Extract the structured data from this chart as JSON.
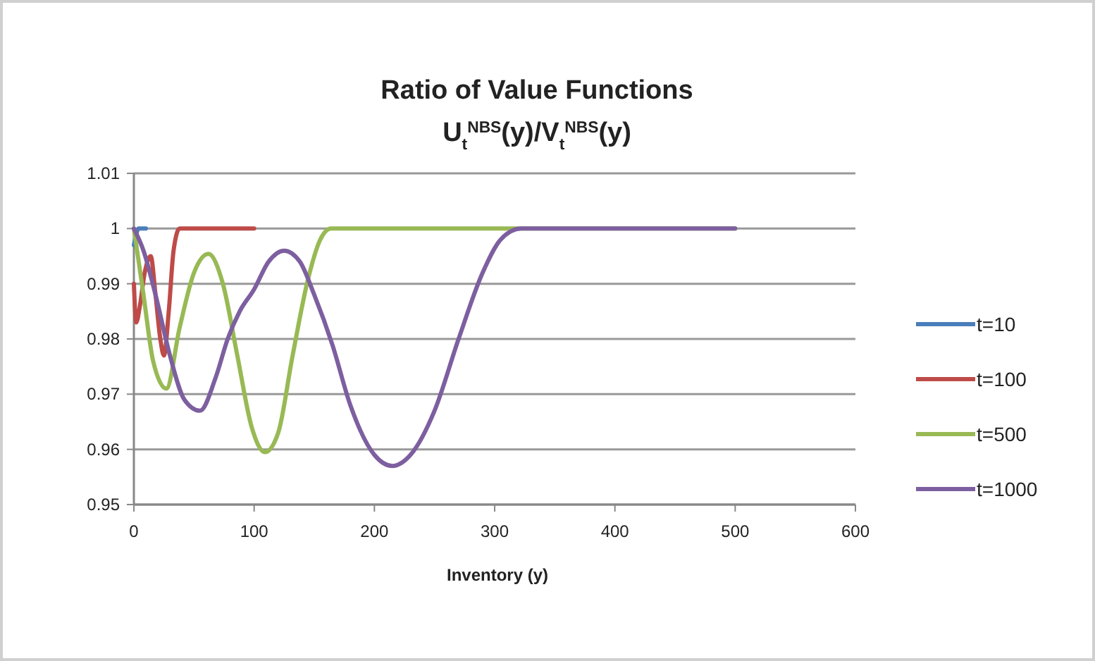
{
  "chart_data": {
    "type": "line",
    "title": "Ratio of Value Functions",
    "subtitle": "U$_{t}$$^{NBS}$(y)/V$_{t}$$^{NBS}$(y)",
    "xlabel": "Inventory (y)",
    "xlim": [
      0,
      600
    ],
    "xticks": [
      0,
      100,
      200,
      300,
      400,
      500,
      600
    ],
    "ylim": [
      0.95,
      1.01
    ],
    "yticks": [
      0.95,
      0.96,
      0.97,
      0.98,
      0.99,
      1,
      1.01
    ],
    "grid": "y",
    "legend": "right",
    "line_style": "solid",
    "marker": "none",
    "series": [
      {
        "name": "t=10",
        "color": "#4a7ebb",
        "x": [
          0,
          2,
          4,
          6,
          10
        ],
        "values": [
          0.997,
          0.999,
          1,
          1,
          1
        ]
      },
      {
        "name": "t=100",
        "color": "#be4b48",
        "x": [
          0,
          2,
          5,
          9,
          14,
          18,
          22,
          25,
          29,
          33,
          38,
          45,
          100
        ],
        "values": [
          0.99,
          0.983,
          0.986,
          0.992,
          0.995,
          0.988,
          0.98,
          0.977,
          0.985,
          0.996,
          1,
          1,
          1
        ]
      },
      {
        "name": "t=500",
        "color": "#98b954",
        "x": [
          0,
          8,
          16,
          27,
          38,
          50,
          62,
          74,
          86,
          98,
          109,
          120,
          132,
          145,
          155,
          164,
          180,
          500
        ],
        "values": [
          1,
          0.988,
          0.976,
          0.971,
          0.982,
          0.992,
          0.9954,
          0.99,
          0.977,
          0.964,
          0.9595,
          0.963,
          0.977,
          0.991,
          0.998,
          1,
          1,
          1
        ]
      },
      {
        "name": "t=1000",
        "color": "#7d5fa0",
        "x": [
          0,
          8,
          18,
          30,
          42,
          55,
          68,
          78,
          88,
          100,
          112,
          125,
          138,
          150,
          165,
          180,
          200,
          215,
          230,
          250,
          270,
          290,
          305,
          322,
          340,
          500
        ],
        "values": [
          1,
          0.996,
          0.988,
          0.977,
          0.969,
          0.967,
          0.973,
          0.98,
          0.985,
          0.989,
          0.994,
          0.996,
          0.994,
          0.988,
          0.979,
          0.968,
          0.959,
          0.957,
          0.959,
          0.967,
          0.98,
          0.992,
          0.998,
          1,
          1,
          1
        ]
      }
    ]
  }
}
